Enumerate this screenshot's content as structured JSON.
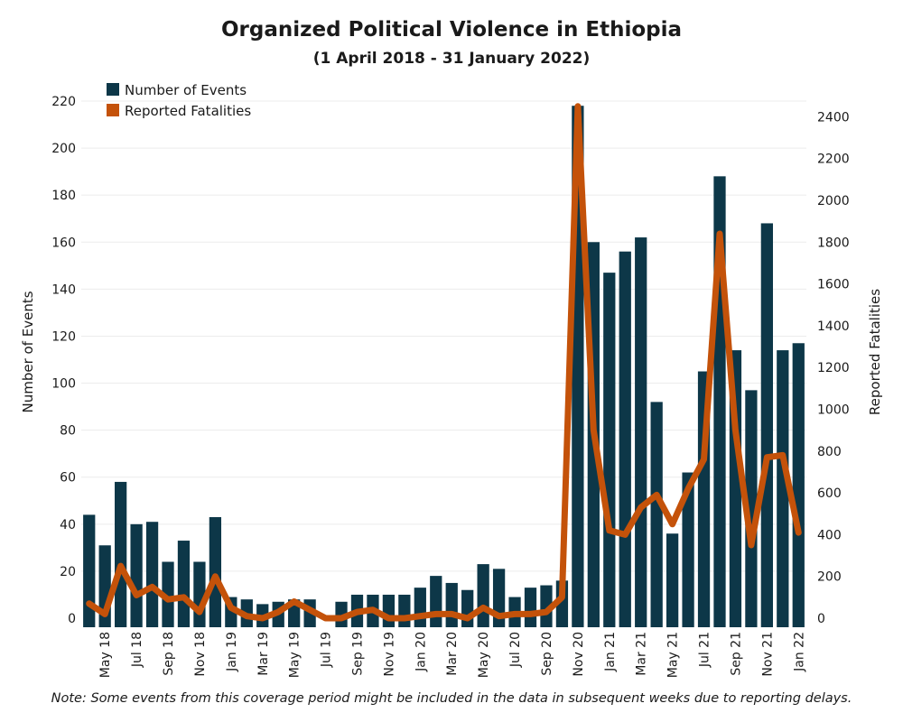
{
  "chart_data": {
    "type": "bar",
    "title": "Organized Political Violence in Ethiopia",
    "subtitle": "(1 April 2018 - 31 January 2022)",
    "note": "Note: Some events from this coverage period might be included in the data in subsequent weeks due to reporting delays.",
    "xlabel": "",
    "ylabel": "Number of Events",
    "y2label": "Reported Fatalities",
    "ylim": [
      0,
      220
    ],
    "y2lim": [
      0,
      2475
    ],
    "yticks": [
      0,
      20,
      40,
      60,
      80,
      100,
      120,
      140,
      160,
      180,
      200,
      220
    ],
    "y2ticks": [
      0,
      200,
      400,
      600,
      800,
      1000,
      1200,
      1400,
      1600,
      1800,
      2000,
      2200,
      2400
    ],
    "grid": true,
    "legend_position": "top-left",
    "categories": [
      "Apr 18",
      "May 18",
      "Jun 18",
      "Jul 18",
      "Aug 18",
      "Sep 18",
      "Oct 18",
      "Nov 18",
      "Dec 18",
      "Jan 19",
      "Feb 19",
      "Mar 19",
      "Apr 19",
      "May 19",
      "Jun 19",
      "Jul 19",
      "Aug 19",
      "Sep 19",
      "Oct 19",
      "Nov 19",
      "Dec 19",
      "Jan 20",
      "Feb 20",
      "Mar 20",
      "Apr 20",
      "May 20",
      "Jun 20",
      "Jul 20",
      "Aug 20",
      "Sep 20",
      "Oct 20",
      "Nov 20",
      "Dec 20",
      "Jan 21",
      "Feb 21",
      "Mar 21",
      "Apr 21",
      "May 21",
      "Jun 21",
      "Jul 21",
      "Aug 21",
      "Sep 21",
      "Oct 21",
      "Nov 21",
      "Dec 21",
      "Jan 22"
    ],
    "x_tick_labels": [
      "May 18",
      "Jul 18",
      "Sep 18",
      "Nov 18",
      "Jan 19",
      "Mar 19",
      "May 19",
      "Jul 19",
      "Sep 19",
      "Nov 19",
      "Jan 20",
      "Mar 20",
      "May 20",
      "Jul 20",
      "Sep 20",
      "Nov 20",
      "Jan 21",
      "Mar 21",
      "May 21",
      "Jul 21",
      "Sep 21",
      "Nov 21",
      "Jan 22"
    ],
    "series": [
      {
        "name": "Number of Events",
        "type": "bar",
        "axis": "left",
        "color": "#0d3748",
        "values": [
          44,
          31,
          58,
          40,
          41,
          24,
          33,
          24,
          43,
          9,
          8,
          6,
          7,
          8,
          8,
          0,
          7,
          10,
          10,
          10,
          10,
          13,
          18,
          15,
          12,
          23,
          21,
          9,
          13,
          14,
          16,
          218,
          160,
          147,
          156,
          162,
          92,
          36,
          62,
          105,
          188,
          114,
          97,
          168,
          114,
          117
        ]
      },
      {
        "name": "Reported Fatalities",
        "type": "line",
        "axis": "right",
        "color": "#c4520a",
        "values": [
          70,
          20,
          250,
          110,
          150,
          90,
          100,
          30,
          200,
          50,
          10,
          0,
          30,
          80,
          40,
          0,
          0,
          30,
          40,
          0,
          0,
          10,
          20,
          20,
          0,
          50,
          10,
          20,
          20,
          30,
          100,
          2450,
          900,
          420,
          400,
          530,
          590,
          450,
          620,
          760,
          1840,
          900,
          350,
          770,
          780,
          410
        ]
      }
    ]
  }
}
